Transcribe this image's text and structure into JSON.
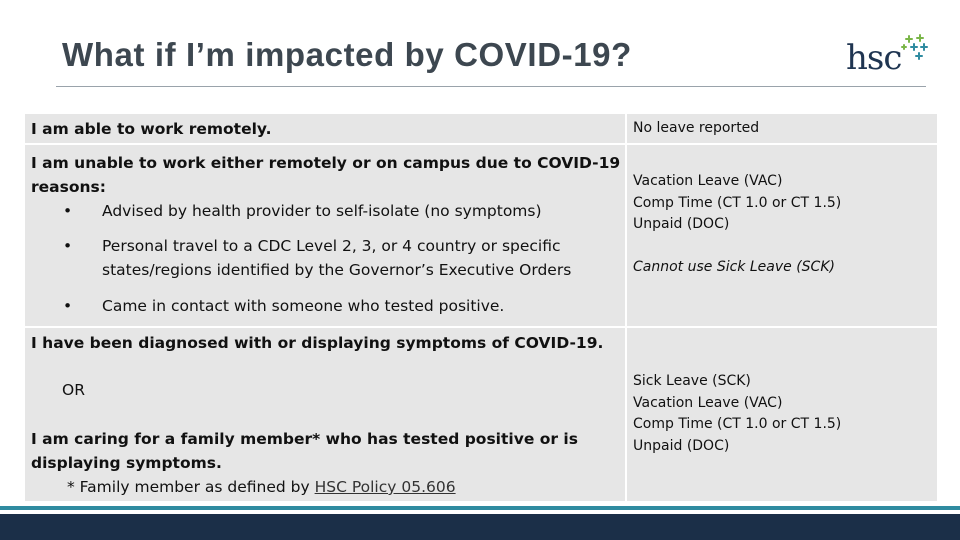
{
  "header": {
    "title": "What if I’m impacted by COVID-19?",
    "logo_text": "hsc"
  },
  "rows": [
    {
      "left_heading": "I am able to work remotely.",
      "right_items": [
        "No leave reported"
      ]
    },
    {
      "left_heading_line1": "I am unable to work either remotely or on campus due to COVID-19",
      "left_heading_line2": "reasons:",
      "bullet_char": "•",
      "bullets": [
        {
          "line1": "Advised by health provider to self-isolate (no symptoms)"
        },
        {
          "line1": "Personal travel to a CDC Level 2, 3, or 4 country or specific",
          "line2": "states/regions identified by the Governor’s Executive Orders"
        },
        {
          "line1": "Came in contact with someone who tested positive."
        }
      ],
      "right_items": [
        "Vacation Leave (VAC)",
        "Comp Time (CT 1.0 or CT 1.5)",
        "Unpaid (DOC)"
      ],
      "right_note": "Cannot use Sick Leave (SCK)"
    },
    {
      "left_heading": "I have been diagnosed with or displaying symptoms of COVID-19.",
      "or_text": "OR",
      "left_heading2_line1": "I am caring for a family member* who has tested positive or is",
      "left_heading2_line2": "displaying symptoms.",
      "footnote_prefix": "* Family member as defined by ",
      "footnote_link": "HSC Policy 05.606",
      "right_items": [
        "Sick Leave (SCK)",
        "Vacation Leave (VAC)",
        "Comp Time (CT 1.0 or CT 1.5)",
        "Unpaid (DOC)"
      ]
    }
  ],
  "colors": {
    "cell_bg": "#e6e6e6",
    "title": "#3d4750",
    "logo": "#1f3551",
    "spark_green": "#7ab648",
    "spark_teal": "#2f8ba0",
    "footer_strip": "#2f8ba0",
    "footer_band": "#1b2f48"
  }
}
